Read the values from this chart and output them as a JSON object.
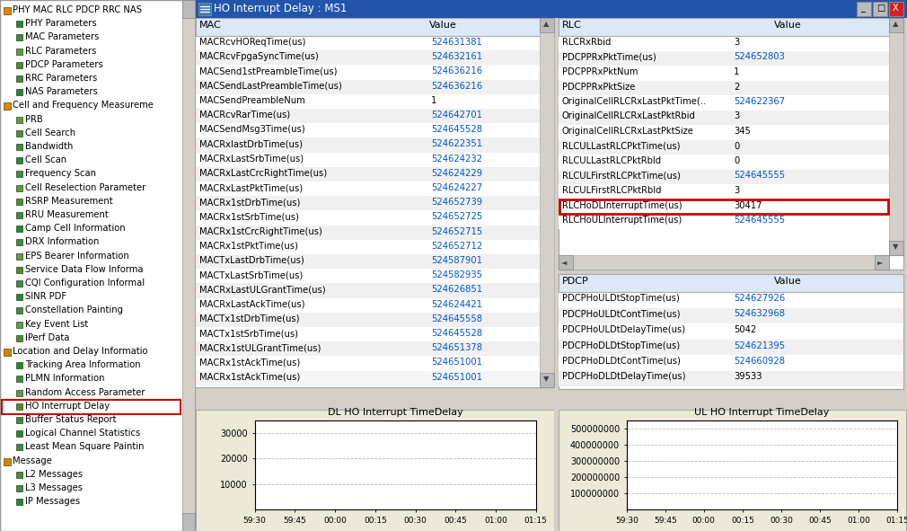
{
  "title_bar": "HO Interrupt Delay : MS1",
  "bg_color": "#d4d0c8",
  "panel_bg": "#ece9d8",
  "table_bg": "#ffffff",
  "tree_bg": "#ffffff",
  "blue_text": "#0055cc",
  "black_text": "#000000",
  "red_box_color": "#cc0000",
  "title_bar_bg": "#000080",
  "tree_items": [
    {
      "text": "PHY MAC RLC PDCP RRC NAS",
      "level": 0
    },
    {
      "text": "PHY Parameters",
      "level": 1
    },
    {
      "text": "MAC Parameters",
      "level": 1
    },
    {
      "text": "RLC Parameters",
      "level": 1
    },
    {
      "text": "PDCP Parameters",
      "level": 1
    },
    {
      "text": "RRC Parameters",
      "level": 1
    },
    {
      "text": "NAS Parameters",
      "level": 1
    },
    {
      "text": "Cell and Frequency Measureme",
      "level": 0
    },
    {
      "text": "PRB",
      "level": 1
    },
    {
      "text": "Cell Search",
      "level": 1
    },
    {
      "text": "Bandwidth",
      "level": 1
    },
    {
      "text": "Cell Scan",
      "level": 1
    },
    {
      "text": "Frequency Scan",
      "level": 1
    },
    {
      "text": "Cell Reselection Parameter",
      "level": 1
    },
    {
      "text": "RSRP Measurement",
      "level": 1
    },
    {
      "text": "RRU Measurement",
      "level": 1
    },
    {
      "text": "Camp Cell Information",
      "level": 1
    },
    {
      "text": "DRX Information",
      "level": 1
    },
    {
      "text": "EPS Bearer Information",
      "level": 1
    },
    {
      "text": "Service Data Flow Informa",
      "level": 1
    },
    {
      "text": "CQI Configuration Informal",
      "level": 1
    },
    {
      "text": "SINR PDF",
      "level": 1
    },
    {
      "text": "Constellation Painting",
      "level": 1
    },
    {
      "text": "Key Event List",
      "level": 1
    },
    {
      "text": "IPerf Data",
      "level": 1
    },
    {
      "text": "Location and Delay Informatio",
      "level": 0
    },
    {
      "text": "Tracking Area Information",
      "level": 1
    },
    {
      "text": "PLMN Information",
      "level": 1
    },
    {
      "text": "Random Access Parameter",
      "level": 1
    },
    {
      "text": "HO Interrupt Delay",
      "level": 1,
      "highlighted": true
    },
    {
      "text": "Buffer Status Report",
      "level": 1
    },
    {
      "text": "Logical Channel Statistics",
      "level": 1
    },
    {
      "text": "Least Mean Square Paintin",
      "level": 1
    },
    {
      "text": "Message",
      "level": 0
    },
    {
      "text": "L2 Messages",
      "level": 1
    },
    {
      "text": "L3 Messages",
      "level": 1
    },
    {
      "text": "IP Messages",
      "level": 1
    }
  ],
  "mac_params": [
    [
      "MACRcvHOReqTime(us)",
      "524631381",
      true
    ],
    [
      "MACRcvFpgaSyncTime(us)",
      "524632161",
      true
    ],
    [
      "MACSend1stPreambleTime(us)",
      "524636216",
      true
    ],
    [
      "MACSendLastPreambleTime(us)",
      "524636216",
      true
    ],
    [
      "MACSendPreambleNum",
      "1",
      false
    ],
    [
      "MACRcvRarTime(us)",
      "524642701",
      true
    ],
    [
      "MACSendMsg3Time(us)",
      "524645528",
      true
    ],
    [
      "MACRxlastDrbTime(us)",
      "524622351",
      true
    ],
    [
      "MACRxLastSrbTime(us)",
      "524624232",
      true
    ],
    [
      "MACRxLastCrcRightTime(us)",
      "524624229",
      true
    ],
    [
      "MACRxLastPktTime(us)",
      "524624227",
      true
    ],
    [
      "MACRx1stDrbTime(us)",
      "524652739",
      true
    ],
    [
      "MACRx1stSrbTime(us)",
      "524652725",
      true
    ],
    [
      "MACRx1stCrcRightTime(us)",
      "524652715",
      true
    ],
    [
      "MACRx1stPktTime(us)",
      "524652712",
      true
    ],
    [
      "MACTxLastDrbTime(us)",
      "524587901",
      true
    ],
    [
      "MACTxLastSrbTime(us)",
      "524582935",
      true
    ],
    [
      "MACRxLastULGrantTime(us)",
      "524626851",
      true
    ],
    [
      "MACRxLastAckTime(us)",
      "524624421",
      true
    ],
    [
      "MACTx1stDrbTime(us)",
      "524645558",
      true
    ],
    [
      "MACTx1stSrbTime(us)",
      "524645528",
      true
    ],
    [
      "MACRx1stULGrantTime(us)",
      "524651378",
      true
    ],
    [
      "MACRx1stAckTime(us)",
      "524651001",
      true
    ]
  ],
  "rlc_params": [
    [
      "RLCRxRbid",
      "3",
      false
    ],
    [
      "PDCPPRxPktTime(us)",
      "524652803",
      true
    ],
    [
      "PDCPPRxPktNum",
      "1",
      false
    ],
    [
      "PDCPPRxPktSize",
      "2",
      false
    ],
    [
      "OriginalCellRLCRxLastPktTime(..",
      "524622367",
      true
    ],
    [
      "OriginalCellRLCRxLastPktRbid",
      "3",
      false
    ],
    [
      "OriginalCellRLCRxLastPktSize",
      "345",
      false
    ],
    [
      "RLCULLastRLCPktTime(us)",
      "0",
      false
    ],
    [
      "RLCULLastRLCPktRbId",
      "0",
      false
    ],
    [
      "RLCULFirstRLCPktTime(us)",
      "524645555",
      true
    ],
    [
      "RLCULFirstRLCPktRbId",
      "3",
      false
    ],
    [
      "RLCHoDLInterruptTime(us)",
      "30417",
      false
    ],
    [
      "RLCHoULInterruptTime(us)",
      "524645555",
      true
    ]
  ],
  "pdcp_params": [
    [
      "PDCPHoULDtStopTime(us)",
      "524627926",
      true
    ],
    [
      "PDCPHoULDtContTime(us)",
      "524632968",
      true
    ],
    [
      "PDCPHoULDtDelayTime(us)",
      "5042",
      false
    ],
    [
      "PDCPHoDLDtStopTime(us)",
      "524621395",
      true
    ],
    [
      "PDCPHoDLDtContTime(us)",
      "524660928",
      true
    ],
    [
      "PDCPHoDLDtDelayTime(us)",
      "39533",
      false
    ]
  ],
  "dl_chart_title": "DL HO Interrupt TimeDelay",
  "ul_chart_title": "UL HO Interrupt TimeDelay",
  "dl_yticks": [
    10000,
    20000,
    30000
  ],
  "ul_yticks": [
    100000000,
    200000000,
    300000000,
    400000000,
    500000000
  ],
  "time_labels": [
    "59:30",
    "59:45",
    "00:00",
    "00:15",
    "00:30",
    "00:45",
    "01:00",
    "01:15"
  ]
}
